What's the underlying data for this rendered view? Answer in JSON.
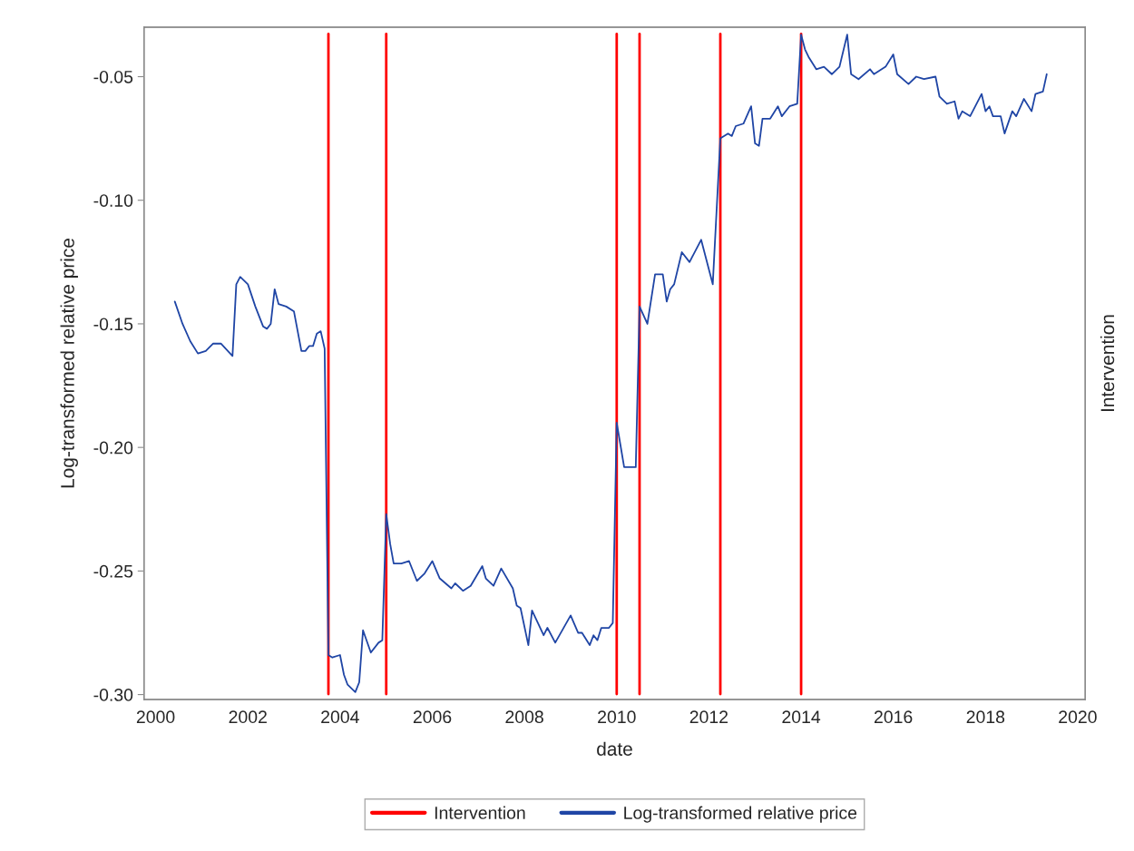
{
  "chart_data": {
    "type": "line",
    "xlabel": "date",
    "ylabel": "Log-transformed relative price",
    "y2label": "Intervention",
    "xlim": [
      "1999-10",
      "2020-03"
    ],
    "ylim": [
      -0.302,
      -0.03
    ],
    "ref_lines": [
      {
        "axis": "x",
        "value": "2003-10",
        "label": "Intervention",
        "color": "#ff0000"
      },
      {
        "axis": "x",
        "value": "2005-01",
        "color": "#ff0000"
      },
      {
        "axis": "x",
        "value": "2010-01",
        "color": "#ff0000"
      },
      {
        "axis": "x",
        "value": "2010-07",
        "color": "#ff0000"
      },
      {
        "axis": "x",
        "value": "2012-04",
        "color": "#ff0000"
      },
      {
        "axis": "x",
        "value": "2014-01",
        "color": "#ff0000"
      }
    ],
    "xticks": [
      {
        "value": "2000",
        "label": "2000"
      },
      {
        "value": "2002",
        "label": "2002"
      },
      {
        "value": "2004",
        "label": "2004"
      },
      {
        "value": "2006",
        "label": "2006"
      },
      {
        "value": "2008",
        "label": "2008"
      },
      {
        "value": "2010",
        "label": "2010"
      },
      {
        "value": "2012",
        "label": "2012"
      },
      {
        "value": "2014",
        "label": "2014"
      },
      {
        "value": "2016",
        "label": "2016"
      },
      {
        "value": "2018",
        "label": "2018"
      },
      {
        "value": "2020",
        "label": "2020"
      }
    ],
    "yticks": [
      {
        "value": -0.3,
        "label": "-0.30"
      },
      {
        "value": -0.25,
        "label": "-0.25"
      },
      {
        "value": -0.2,
        "label": "-0.20"
      },
      {
        "value": -0.15,
        "label": "-0.15"
      },
      {
        "value": -0.1,
        "label": "-0.10"
      },
      {
        "value": -0.05,
        "label": "-0.05"
      }
    ],
    "grid": false,
    "legend": "bottom",
    "series": [
      {
        "name": "Log-transformed relative price",
        "color": "#1f45a5",
        "x": [
          "2000-06",
          "2000-08",
          "2000-10",
          "2000-12",
          "2001-02",
          "2001-04",
          "2001-06",
          "2001-09",
          "2001-10",
          "2001-11",
          "2002-01",
          "2002-03",
          "2002-05",
          "2002-06",
          "2002-07",
          "2002-08",
          "2002-09",
          "2002-11",
          "2003-01",
          "2003-03",
          "2003-04",
          "2003-05",
          "2003-06",
          "2003-07",
          "2003-08",
          "2003-09",
          "2003-10",
          "2003-11",
          "2004-01",
          "2004-02",
          "2004-03",
          "2004-05",
          "2004-06",
          "2004-07",
          "2004-09",
          "2004-11",
          "2004-12",
          "2005-01",
          "2005-02",
          "2005-03",
          "2005-05",
          "2005-07",
          "2005-09",
          "2005-11",
          "2006-01",
          "2006-03",
          "2006-06",
          "2006-07",
          "2006-09",
          "2006-11",
          "2007-02",
          "2007-03",
          "2007-05",
          "2007-07",
          "2007-10",
          "2007-11",
          "2007-12",
          "2008-02",
          "2008-03",
          "2008-06",
          "2008-07",
          "2008-09",
          "2009-01",
          "2009-03",
          "2009-04",
          "2009-06",
          "2009-07",
          "2009-08",
          "2009-09",
          "2009-11",
          "2009-12",
          "2010-01",
          "2010-03",
          "2010-06",
          "2010-07",
          "2010-09",
          "2010-11",
          "2011-01",
          "2011-02",
          "2011-03",
          "2011-04",
          "2011-06",
          "2011-08",
          "2011-11",
          "2012-02",
          "2012-04",
          "2012-06",
          "2012-07",
          "2012-08",
          "2012-10",
          "2012-12",
          "2013-01",
          "2013-02",
          "2013-03",
          "2013-05",
          "2013-07",
          "2013-08",
          "2013-10",
          "2013-12",
          "2014-01",
          "2014-02",
          "2014-03",
          "2014-05",
          "2014-07",
          "2014-09",
          "2014-11",
          "2015-01",
          "2015-02",
          "2015-04",
          "2015-07",
          "2015-08",
          "2015-11",
          "2016-01",
          "2016-02",
          "2016-05",
          "2016-07",
          "2016-09",
          "2016-12",
          "2017-01",
          "2017-03",
          "2017-05",
          "2017-06",
          "2017-07",
          "2017-09",
          "2017-12",
          "2018-01",
          "2018-02",
          "2018-03",
          "2018-05",
          "2018-06",
          "2018-08",
          "2018-09",
          "2018-11",
          "2019-01",
          "2019-02",
          "2019-04",
          "2019-05"
        ],
        "values": [
          -0.141,
          -0.15,
          -0.157,
          -0.162,
          -0.161,
          -0.158,
          -0.158,
          -0.163,
          -0.134,
          -0.131,
          -0.134,
          -0.143,
          -0.151,
          -0.152,
          -0.15,
          -0.136,
          -0.142,
          -0.143,
          -0.145,
          -0.161,
          -0.161,
          -0.159,
          -0.159,
          -0.154,
          -0.153,
          -0.16,
          -0.284,
          -0.285,
          -0.284,
          -0.292,
          -0.296,
          -0.299,
          -0.295,
          -0.274,
          -0.283,
          -0.279,
          -0.278,
          -0.227,
          -0.239,
          -0.247,
          -0.247,
          -0.246,
          -0.254,
          -0.251,
          -0.246,
          -0.253,
          -0.257,
          -0.255,
          -0.258,
          -0.256,
          -0.248,
          -0.253,
          -0.256,
          -0.249,
          -0.257,
          -0.264,
          -0.265,
          -0.28,
          -0.266,
          -0.276,
          -0.273,
          -0.279,
          -0.268,
          -0.275,
          -0.275,
          -0.28,
          -0.276,
          -0.278,
          -0.273,
          -0.273,
          -0.271,
          -0.19,
          -0.208,
          -0.208,
          -0.143,
          -0.15,
          -0.13,
          -0.13,
          -0.141,
          -0.136,
          -0.134,
          -0.121,
          -0.125,
          -0.116,
          -0.134,
          -0.075,
          -0.073,
          -0.074,
          -0.07,
          -0.069,
          -0.062,
          -0.077,
          -0.078,
          -0.067,
          -0.067,
          -0.062,
          -0.066,
          -0.062,
          -0.061,
          -0.033,
          -0.039,
          -0.042,
          -0.047,
          -0.046,
          -0.049,
          -0.046,
          -0.033,
          -0.049,
          -0.051,
          -0.047,
          -0.049,
          -0.046,
          -0.041,
          -0.049,
          -0.053,
          -0.05,
          -0.051,
          -0.05,
          -0.058,
          -0.061,
          -0.06,
          -0.067,
          -0.064,
          -0.066,
          -0.057,
          -0.064,
          -0.062,
          -0.066,
          -0.066,
          -0.073,
          -0.064,
          -0.066,
          -0.059,
          -0.064,
          -0.057,
          -0.056,
          -0.049
        ]
      }
    ]
  }
}
